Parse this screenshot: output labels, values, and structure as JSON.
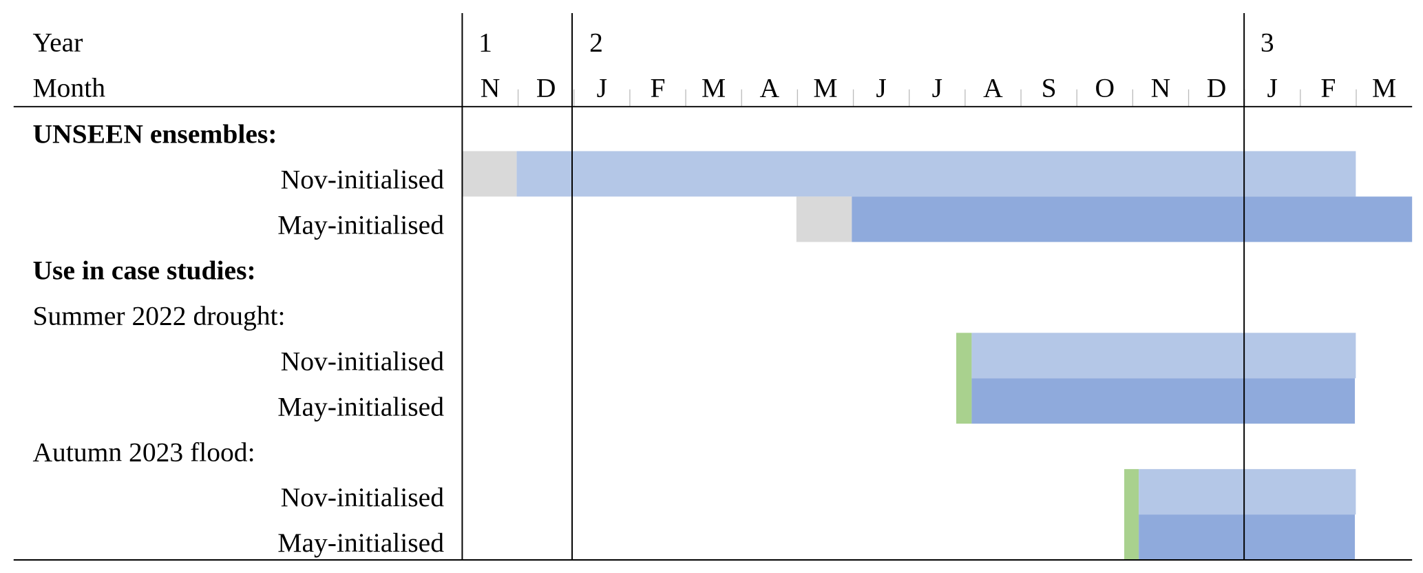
{
  "header": {
    "year_label": "Year",
    "month_label": "Month",
    "years": [
      "1",
      "2",
      "3"
    ],
    "months": [
      "N",
      "D",
      "J",
      "F",
      "M",
      "A",
      "M",
      "J",
      "J",
      "A",
      "S",
      "O",
      "N",
      "D",
      "J",
      "F",
      "M"
    ]
  },
  "rows": [
    "UNSEEN ensembles:",
    "Nov-initialised",
    "May-initialised",
    "Use in case studies:",
    "Summer 2022 drought:",
    "Nov-initialised",
    "May-initialised",
    "Autumn 2023 flood:",
    "Nov-initialised",
    "May-initialised"
  ]
}
